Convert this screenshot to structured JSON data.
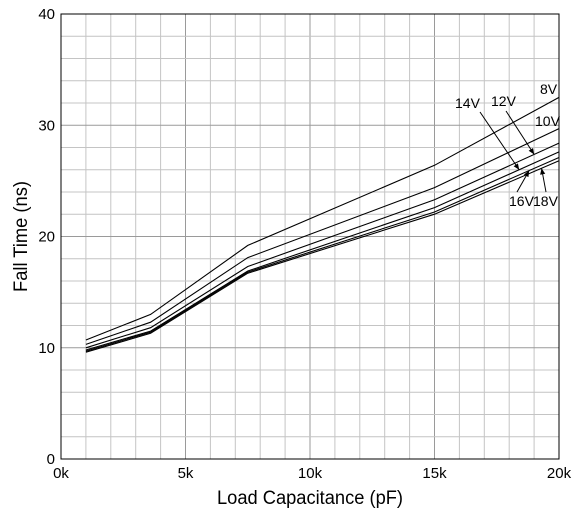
{
  "chart_data": {
    "type": "line",
    "xlabel": "Load Capacitance (pF)",
    "ylabel": "Fall Time (ns)",
    "xlim": [
      0,
      20000
    ],
    "ylim": [
      0,
      40
    ],
    "grid": true,
    "x_ticks": [
      {
        "value": 0,
        "label": "0k"
      },
      {
        "value": 5000,
        "label": "5k"
      },
      {
        "value": 10000,
        "label": "10k"
      },
      {
        "value": 15000,
        "label": "15k"
      },
      {
        "value": 20000,
        "label": "20k"
      }
    ],
    "y_ticks": [
      {
        "value": 0,
        "label": "0"
      },
      {
        "value": 10,
        "label": "10"
      },
      {
        "value": 20,
        "label": "20"
      },
      {
        "value": 30,
        "label": "30"
      },
      {
        "value": 40,
        "label": "40"
      }
    ],
    "x": [
      1000,
      3600,
      7500,
      15000,
      20000
    ],
    "series": [
      {
        "name": "8V",
        "values": [
          10.7,
          13.0,
          19.2,
          26.4,
          32.5
        ]
      },
      {
        "name": "10V",
        "values": [
          10.3,
          12.3,
          18.1,
          24.4,
          29.7
        ]
      },
      {
        "name": "12V",
        "values": [
          10.0,
          11.8,
          17.3,
          23.3,
          28.4
        ]
      },
      {
        "name": "14V",
        "values": [
          9.8,
          11.5,
          16.9,
          22.6,
          27.6
        ]
      },
      {
        "name": "16V",
        "values": [
          9.7,
          11.4,
          16.8,
          22.2,
          27.1
        ]
      },
      {
        "name": "18V",
        "values": [
          9.6,
          11.3,
          16.7,
          22.0,
          26.8
        ]
      }
    ],
    "series_label_refs": [
      {
        "series": "8V",
        "at_x": null
      },
      {
        "series": "10V",
        "at_x": null
      },
      {
        "series": "12V",
        "at_x": 19000
      },
      {
        "series": "14V",
        "at_x": 18400
      },
      {
        "series": "16V",
        "at_x": 18800
      },
      {
        "series": "18V",
        "at_x": 19300
      }
    ]
  }
}
